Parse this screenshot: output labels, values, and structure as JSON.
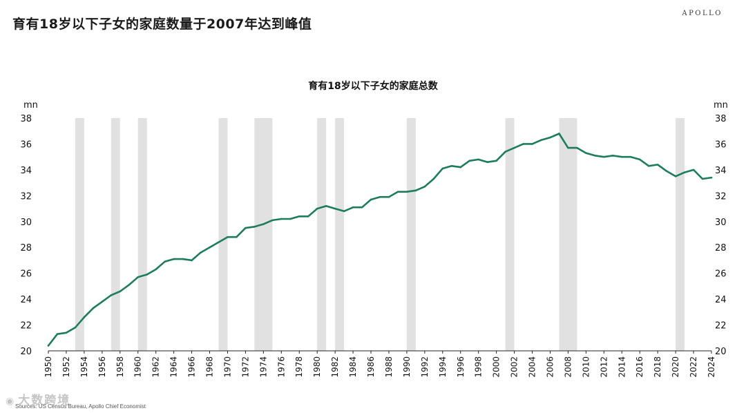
{
  "header": {
    "title": "育有18岁以下子女的家庭数量于2007年达到峰值",
    "brand": "APOLLO"
  },
  "footer": {
    "source": "Sources: US Census Bureau, Apollo Chief Economist",
    "watermark": "大数跨境"
  },
  "colors": {
    "line": "#1c7c5c",
    "recession": "#e1e1e1",
    "axis": "#222222"
  },
  "chart_data": {
    "type": "line",
    "title": "育有18岁以下子女的家庭总数",
    "ylabel_left": "mn",
    "ylabel_right": "mn",
    "xlabel": "",
    "xlim": [
      1950,
      2024
    ],
    "ylim": [
      20,
      38
    ],
    "y_ticks": [
      20,
      22,
      24,
      26,
      28,
      30,
      32,
      34,
      36,
      38
    ],
    "x_ticks": [
      1950,
      1952,
      1954,
      1956,
      1958,
      1960,
      1962,
      1964,
      1966,
      1968,
      1970,
      1972,
      1974,
      1976,
      1978,
      1980,
      1982,
      1984,
      1986,
      1988,
      1990,
      1992,
      1994,
      1996,
      1998,
      2000,
      2002,
      2004,
      2006,
      2008,
      2010,
      2012,
      2014,
      2016,
      2018,
      2020,
      2022,
      2024
    ],
    "grid": false,
    "recessions": [
      [
        1953.0,
        1954.0
      ],
      [
        1957.0,
        1958.0
      ],
      [
        1960.0,
        1961.0
      ],
      [
        1969.0,
        1970.0
      ],
      [
        1973.0,
        1975.0
      ],
      [
        1980.0,
        1981.0
      ],
      [
        1982.0,
        1983.0
      ],
      [
        1990.0,
        1991.0
      ],
      [
        2001.0,
        2002.0
      ],
      [
        2007.0,
        2009.0
      ],
      [
        2020.0,
        2021.0
      ]
    ],
    "series": [
      {
        "name": "育有18岁以下子女的家庭总数",
        "x": [
          1950,
          1951,
          1952,
          1953,
          1954,
          1955,
          1956,
          1957,
          1958,
          1959,
          1960,
          1961,
          1962,
          1963,
          1964,
          1965,
          1966,
          1967,
          1968,
          1969,
          1970,
          1971,
          1972,
          1973,
          1974,
          1975,
          1976,
          1977,
          1978,
          1979,
          1980,
          1981,
          1982,
          1983,
          1984,
          1985,
          1986,
          1987,
          1988,
          1989,
          1990,
          1991,
          1992,
          1993,
          1994,
          1995,
          1996,
          1997,
          1998,
          1999,
          2000,
          2001,
          2002,
          2003,
          2004,
          2005,
          2006,
          2007,
          2008,
          2009,
          2010,
          2011,
          2012,
          2013,
          2014,
          2015,
          2016,
          2017,
          2018,
          2019,
          2020,
          2021,
          2022,
          2023,
          2024
        ],
        "values": [
          20.4,
          21.3,
          21.4,
          21.8,
          22.6,
          23.3,
          23.8,
          24.3,
          24.6,
          25.1,
          25.7,
          25.9,
          26.3,
          26.9,
          27.1,
          27.1,
          27.0,
          27.6,
          28.0,
          28.4,
          28.8,
          28.8,
          29.5,
          29.6,
          29.8,
          30.1,
          30.2,
          30.2,
          30.4,
          30.4,
          31.0,
          31.2,
          31.0,
          30.8,
          31.1,
          31.1,
          31.7,
          31.9,
          31.9,
          32.3,
          32.3,
          32.4,
          32.7,
          33.3,
          34.1,
          34.3,
          34.2,
          34.7,
          34.8,
          34.6,
          34.7,
          35.4,
          35.7,
          36.0,
          36.0,
          36.3,
          36.5,
          36.8,
          35.7,
          35.7,
          35.3,
          35.1,
          35.0,
          35.1,
          35.0,
          35.0,
          34.8,
          34.3,
          34.4,
          33.9,
          33.5,
          33.8,
          34.0,
          33.3,
          33.4
        ]
      }
    ]
  }
}
